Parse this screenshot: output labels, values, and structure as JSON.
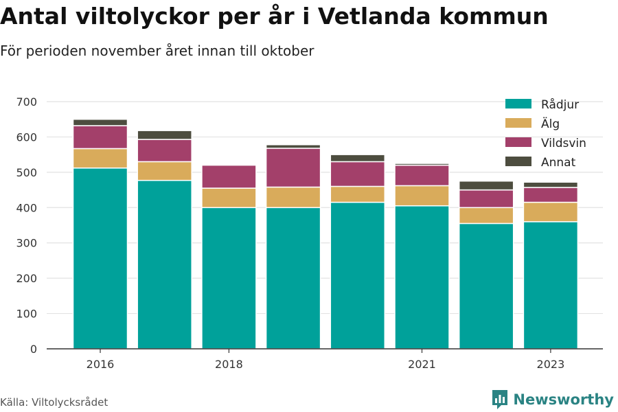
{
  "chart_data": {
    "type": "bar",
    "stacked": true,
    "title": "Antal viltolyckor per år i Vetlanda kommun",
    "subtitle": "För perioden november året innan till oktober",
    "x": [
      2016,
      2017,
      2018,
      2019,
      2020,
      2021,
      2022,
      2023
    ],
    "x_tick_labels": [
      {
        "value": 2016,
        "label": "2016"
      },
      {
        "value": 2018,
        "label": "2018"
      },
      {
        "value": 2021,
        "label": "2021"
      },
      {
        "value": 2023,
        "label": "2023"
      }
    ],
    "y_ticks": [
      0,
      100,
      200,
      300,
      400,
      500,
      600,
      700
    ],
    "ylim": [
      0,
      700
    ],
    "grid": true,
    "legend_position": "top-right",
    "series": [
      {
        "name": "Rådjur",
        "color": "#00a19a",
        "values": [
          512,
          477,
          400,
          400,
          415,
          405,
          355,
          360
        ]
      },
      {
        "name": "Älg",
        "color": "#d9ab5b",
        "values": [
          55,
          53,
          55,
          58,
          45,
          57,
          45,
          55
        ]
      },
      {
        "name": "Vildsvin",
        "color": "#a3406a",
        "values": [
          65,
          63,
          65,
          110,
          70,
          58,
          50,
          42
        ]
      },
      {
        "name": "Annat",
        "color": "#4d4d3f",
        "values": [
          18,
          25,
          0,
          10,
          20,
          5,
          25,
          15
        ]
      }
    ]
  },
  "footer": {
    "source": "Källa: Viltolycksrådet",
    "brand": "Newsworthy",
    "brand_color": "#2a8383",
    "brand_icon": "bar-chart-logo-icon"
  }
}
